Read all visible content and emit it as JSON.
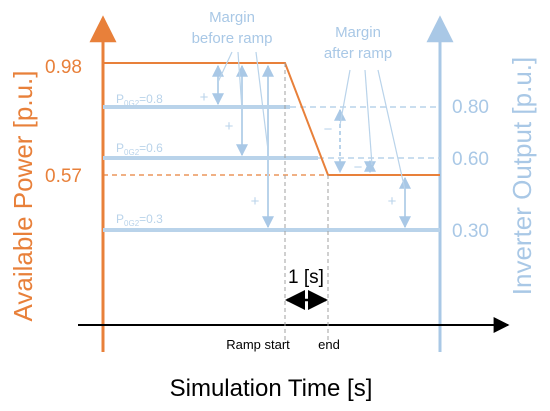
{
  "colors": {
    "available": "#e8803a",
    "inverter": "#a9c8e6",
    "black": "#000000",
    "dashed_gray": "#a0a0a0"
  },
  "axes": {
    "left_label": "Available Power [p.u.]",
    "right_label": "Inverter Output [p.u.]",
    "x_label": "Simulation Time [s]"
  },
  "left_ticks": [
    {
      "value": 0.98,
      "label": "0.98"
    },
    {
      "value": 0.57,
      "label": "0.57"
    }
  ],
  "right_ticks": [
    {
      "value": 0.8,
      "label": "0.80"
    },
    {
      "value": 0.6,
      "label": "0.60"
    },
    {
      "value": 0.3,
      "label": "0.30"
    }
  ],
  "levels": [
    {
      "value": 0.8,
      "label_main": "P",
      "label_sub": "0G2",
      "label_tail": "=0.8"
    },
    {
      "value": 0.6,
      "label_main": "P",
      "label_sub": "0G2",
      "label_tail": "=0.6"
    },
    {
      "value": 0.3,
      "label_main": "P",
      "label_sub": "0G2",
      "label_tail": "=0.3"
    }
  ],
  "annotations": {
    "margin_before_line1": "Margin",
    "margin_before_line2": "before ramp",
    "margin_after_line1": "Margin",
    "margin_after_line2": "after ramp",
    "duration": "1 [s]",
    "ramp_start": "Ramp start",
    "ramp_end": "end",
    "plus": "+",
    "minus": "−"
  }
}
